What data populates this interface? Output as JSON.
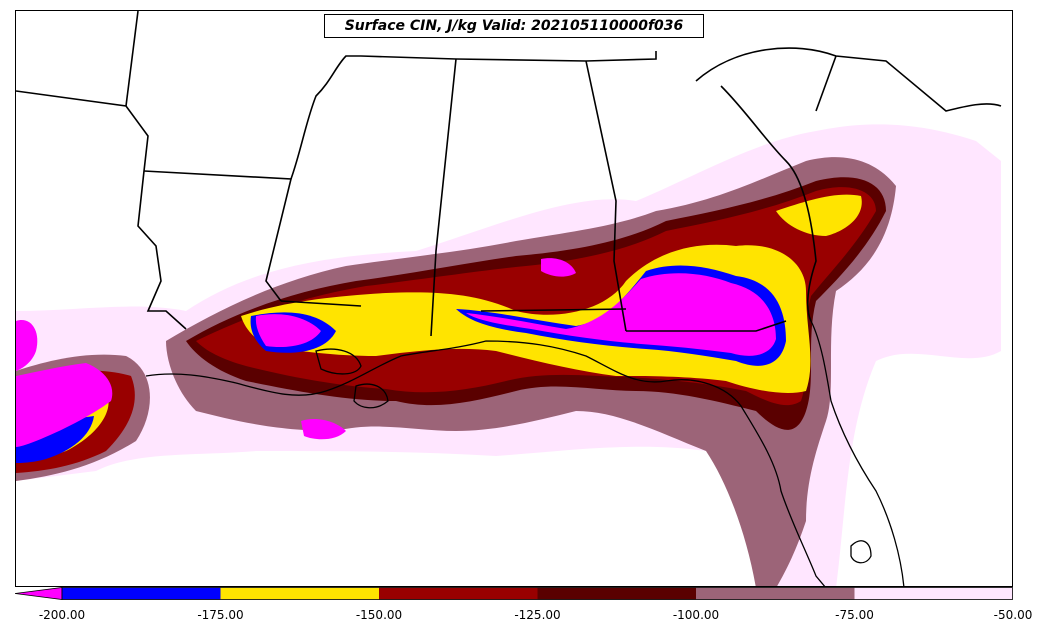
{
  "title": "Surface CIN, J/kg Valid: 202105110000f036",
  "colorbar": {
    "bins": [
      {
        "lower": -200,
        "upper": -175,
        "color": "#0000ff"
      },
      {
        "lower": -175,
        "upper": -150,
        "color": "#ffe400"
      },
      {
        "lower": -150,
        "upper": -125,
        "color": "#990000"
      },
      {
        "lower": -125,
        "upper": -100,
        "color": "#5a0000"
      },
      {
        "lower": -100,
        "upper": -75,
        "color": "#9c6478"
      },
      {
        "lower": -75,
        "upper": -50,
        "color": "#ffe6ff"
      }
    ],
    "extend_min_color": "#ff00ff",
    "tick_labels": [
      "-200.00",
      "-175.00",
      "-150.00",
      "-125.00",
      "-100.00",
      "-75.00",
      "-50.00"
    ]
  }
}
